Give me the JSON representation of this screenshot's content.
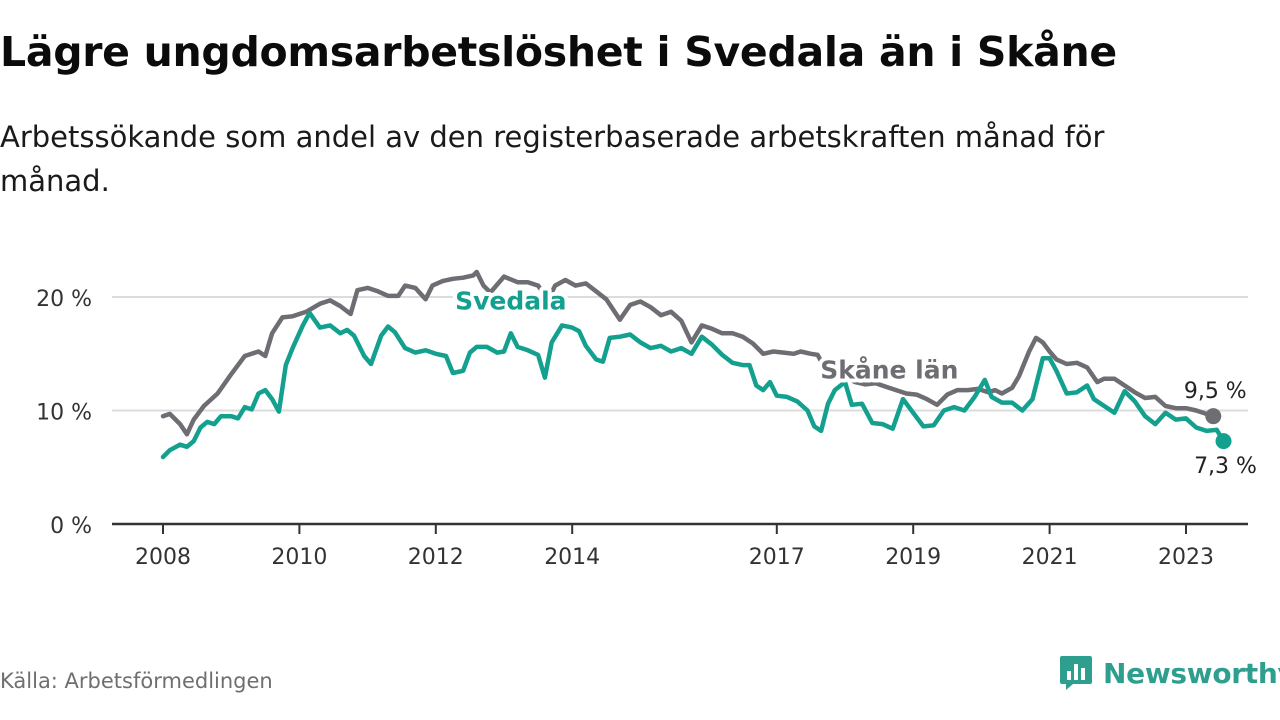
{
  "title": "Lägre ungdomsarbetslöshet i Svedala än i Skåne",
  "subtitle": "Arbetssökande som andel av den registerbaserade arbetskraften månad för månad.",
  "source": "Källa: Arbetsförmedlingen",
  "brand": "Newsworthy",
  "colors": {
    "svedala": "#13a08f",
    "skane": "#6e6d73",
    "grid": "#dcdcdc",
    "axis": "#333333",
    "brand": "#2e9f8e"
  },
  "chart_data": {
    "type": "line",
    "x_range": [
      2007.9,
      2023.8
    ],
    "ylim": [
      0,
      22
    ],
    "y_ticks": [
      {
        "value": 0,
        "label": "0 %"
      },
      {
        "value": 10,
        "label": "10 %"
      },
      {
        "value": 20,
        "label": "20 %"
      }
    ],
    "x_ticks": [
      {
        "value": 2008,
        "label": "2008"
      },
      {
        "value": 2010,
        "label": "2010"
      },
      {
        "value": 2012,
        "label": "2012"
      },
      {
        "value": 2014,
        "label": "2014"
      },
      {
        "value": 2017,
        "label": "2017"
      },
      {
        "value": 2019,
        "label": "2019"
      },
      {
        "value": 2021,
        "label": "2021"
      },
      {
        "value": 2023,
        "label": "2023"
      }
    ],
    "grid": true,
    "series": [
      {
        "name": "Skåne län",
        "key": "skane",
        "end_label": "9,5 %",
        "points": [
          [
            2008.0,
            9.5
          ],
          [
            2008.1,
            9.7
          ],
          [
            2008.25,
            8.8
          ],
          [
            2008.35,
            7.9
          ],
          [
            2008.45,
            9.2
          ],
          [
            2008.6,
            10.4
          ],
          [
            2008.8,
            11.5
          ],
          [
            2009.0,
            13.2
          ],
          [
            2009.2,
            14.8
          ],
          [
            2009.4,
            15.2
          ],
          [
            2009.5,
            14.8
          ],
          [
            2009.6,
            16.8
          ],
          [
            2009.75,
            18.2
          ],
          [
            2009.9,
            18.3
          ],
          [
            2010.1,
            18.7
          ],
          [
            2010.3,
            19.4
          ],
          [
            2010.45,
            19.7
          ],
          [
            2010.6,
            19.2
          ],
          [
            2010.75,
            18.5
          ],
          [
            2010.85,
            20.6
          ],
          [
            2011.0,
            20.8
          ],
          [
            2011.15,
            20.5
          ],
          [
            2011.3,
            20.1
          ],
          [
            2011.45,
            20.1
          ],
          [
            2011.55,
            21.0
          ],
          [
            2011.7,
            20.8
          ],
          [
            2011.85,
            19.8
          ],
          [
            2011.95,
            21.0
          ],
          [
            2012.1,
            21.4
          ],
          [
            2012.25,
            21.6
          ],
          [
            2012.4,
            21.7
          ],
          [
            2012.55,
            21.9
          ],
          [
            2012.6,
            22.2
          ],
          [
            2012.7,
            21.0
          ],
          [
            2012.8,
            20.4
          ],
          [
            2013.0,
            21.8
          ],
          [
            2013.2,
            21.3
          ],
          [
            2013.35,
            21.3
          ],
          [
            2013.5,
            21.0
          ],
          [
            2013.65,
            19.8
          ],
          [
            2013.75,
            21.0
          ],
          [
            2013.9,
            21.5
          ],
          [
            2014.05,
            21.0
          ],
          [
            2014.2,
            21.2
          ],
          [
            2014.35,
            20.5
          ],
          [
            2014.5,
            19.8
          ],
          [
            2014.7,
            18.0
          ],
          [
            2014.85,
            19.3
          ],
          [
            2015.0,
            19.6
          ],
          [
            2015.15,
            19.1
          ],
          [
            2015.3,
            18.4
          ],
          [
            2015.45,
            18.7
          ],
          [
            2015.6,
            17.9
          ],
          [
            2015.75,
            16.0
          ],
          [
            2015.9,
            17.5
          ],
          [
            2016.05,
            17.2
          ],
          [
            2016.2,
            16.8
          ],
          [
            2016.35,
            16.8
          ],
          [
            2016.5,
            16.5
          ],
          [
            2016.65,
            15.9
          ],
          [
            2016.8,
            15.0
          ],
          [
            2016.95,
            15.2
          ],
          [
            2017.1,
            15.1
          ],
          [
            2017.25,
            15.0
          ],
          [
            2017.35,
            15.2
          ],
          [
            2017.5,
            15.0
          ],
          [
            2017.6,
            14.9
          ],
          [
            2017.7,
            13.8
          ],
          [
            2017.85,
            13.5
          ],
          [
            2018.0,
            13.0
          ],
          [
            2018.15,
            12.5
          ],
          [
            2018.3,
            12.3
          ],
          [
            2018.45,
            12.4
          ],
          [
            2018.6,
            12.1
          ],
          [
            2018.75,
            11.8
          ],
          [
            2018.9,
            11.5
          ],
          [
            2019.05,
            11.4
          ],
          [
            2019.2,
            11.0
          ],
          [
            2019.35,
            10.5
          ],
          [
            2019.5,
            11.4
          ],
          [
            2019.65,
            11.8
          ],
          [
            2019.8,
            11.8
          ],
          [
            2019.95,
            11.9
          ],
          [
            2020.1,
            11.6
          ],
          [
            2020.2,
            11.8
          ],
          [
            2020.3,
            11.5
          ],
          [
            2020.45,
            12.0
          ],
          [
            2020.55,
            13.0
          ],
          [
            2020.7,
            15.2
          ],
          [
            2020.8,
            16.4
          ],
          [
            2020.9,
            16.0
          ],
          [
            2021.0,
            15.2
          ],
          [
            2021.1,
            14.5
          ],
          [
            2021.25,
            14.1
          ],
          [
            2021.4,
            14.2
          ],
          [
            2021.55,
            13.8
          ],
          [
            2021.7,
            12.5
          ],
          [
            2021.8,
            12.8
          ],
          [
            2021.95,
            12.8
          ],
          [
            2022.1,
            12.2
          ],
          [
            2022.25,
            11.6
          ],
          [
            2022.4,
            11.1
          ],
          [
            2022.55,
            11.2
          ],
          [
            2022.7,
            10.4
          ],
          [
            2022.85,
            10.2
          ],
          [
            2023.0,
            10.2
          ],
          [
            2023.15,
            10.0
          ],
          [
            2023.25,
            9.8
          ],
          [
            2023.4,
            9.5
          ]
        ]
      },
      {
        "name": "Svedala",
        "key": "svedala",
        "end_label": "7,3 %",
        "points": [
          [
            2008.0,
            5.9
          ],
          [
            2008.1,
            6.5
          ],
          [
            2008.25,
            7.0
          ],
          [
            2008.35,
            6.8
          ],
          [
            2008.45,
            7.3
          ],
          [
            2008.55,
            8.5
          ],
          [
            2008.65,
            9.0
          ],
          [
            2008.75,
            8.8
          ],
          [
            2008.85,
            9.5
          ],
          [
            2009.0,
            9.5
          ],
          [
            2009.1,
            9.3
          ],
          [
            2009.2,
            10.3
          ],
          [
            2009.3,
            10.1
          ],
          [
            2009.4,
            11.5
          ],
          [
            2009.5,
            11.8
          ],
          [
            2009.6,
            11.0
          ],
          [
            2009.7,
            9.9
          ],
          [
            2009.8,
            14.0
          ],
          [
            2009.9,
            15.5
          ],
          [
            2010.05,
            17.5
          ],
          [
            2010.15,
            18.6
          ],
          [
            2010.3,
            17.3
          ],
          [
            2010.45,
            17.5
          ],
          [
            2010.6,
            16.8
          ],
          [
            2010.7,
            17.1
          ],
          [
            2010.8,
            16.6
          ],
          [
            2010.95,
            14.8
          ],
          [
            2011.05,
            14.1
          ],
          [
            2011.2,
            16.6
          ],
          [
            2011.3,
            17.4
          ],
          [
            2011.4,
            16.9
          ],
          [
            2011.55,
            15.5
          ],
          [
            2011.7,
            15.1
          ],
          [
            2011.85,
            15.3
          ],
          [
            2012.0,
            15.0
          ],
          [
            2012.15,
            14.8
          ],
          [
            2012.25,
            13.3
          ],
          [
            2012.4,
            13.5
          ],
          [
            2012.5,
            15.1
          ],
          [
            2012.6,
            15.6
          ],
          [
            2012.75,
            15.6
          ],
          [
            2012.9,
            15.1
          ],
          [
            2013.0,
            15.2
          ],
          [
            2013.1,
            16.8
          ],
          [
            2013.2,
            15.6
          ],
          [
            2013.35,
            15.3
          ],
          [
            2013.5,
            14.9
          ],
          [
            2013.6,
            12.9
          ],
          [
            2013.7,
            16.0
          ],
          [
            2013.85,
            17.5
          ],
          [
            2014.0,
            17.3
          ],
          [
            2014.1,
            17.0
          ],
          [
            2014.2,
            15.7
          ],
          [
            2014.35,
            14.5
          ],
          [
            2014.45,
            14.3
          ],
          [
            2014.55,
            16.4
          ],
          [
            2014.7,
            16.5
          ],
          [
            2014.85,
            16.7
          ],
          [
            2015.0,
            16.0
          ],
          [
            2015.15,
            15.5
          ],
          [
            2015.3,
            15.7
          ],
          [
            2015.45,
            15.2
          ],
          [
            2015.6,
            15.5
          ],
          [
            2015.75,
            15.0
          ],
          [
            2015.9,
            16.5
          ],
          [
            2016.05,
            15.8
          ],
          [
            2016.2,
            14.9
          ],
          [
            2016.35,
            14.2
          ],
          [
            2016.5,
            14.0
          ],
          [
            2016.6,
            14.0
          ],
          [
            2016.7,
            12.2
          ],
          [
            2016.8,
            11.8
          ],
          [
            2016.9,
            12.5
          ],
          [
            2017.0,
            11.3
          ],
          [
            2017.15,
            11.2
          ],
          [
            2017.3,
            10.8
          ],
          [
            2017.45,
            10.0
          ],
          [
            2017.55,
            8.6
          ],
          [
            2017.65,
            8.2
          ],
          [
            2017.75,
            10.6
          ],
          [
            2017.85,
            11.8
          ],
          [
            2018.0,
            12.5
          ],
          [
            2018.1,
            10.5
          ],
          [
            2018.25,
            10.6
          ],
          [
            2018.4,
            8.9
          ],
          [
            2018.55,
            8.8
          ],
          [
            2018.7,
            8.4
          ],
          [
            2018.85,
            11.0
          ],
          [
            2019.0,
            9.8
          ],
          [
            2019.15,
            8.6
          ],
          [
            2019.3,
            8.7
          ],
          [
            2019.45,
            10.0
          ],
          [
            2019.6,
            10.3
          ],
          [
            2019.75,
            10.0
          ],
          [
            2019.9,
            11.2
          ],
          [
            2020.05,
            12.7
          ],
          [
            2020.15,
            11.2
          ],
          [
            2020.3,
            10.7
          ],
          [
            2020.45,
            10.7
          ],
          [
            2020.6,
            10.0
          ],
          [
            2020.75,
            11.0
          ],
          [
            2020.9,
            14.6
          ],
          [
            2021.0,
            14.6
          ],
          [
            2021.1,
            13.5
          ],
          [
            2021.25,
            11.5
          ],
          [
            2021.4,
            11.6
          ],
          [
            2021.55,
            12.2
          ],
          [
            2021.65,
            11.0
          ],
          [
            2021.8,
            10.4
          ],
          [
            2021.95,
            9.8
          ],
          [
            2022.1,
            11.7
          ],
          [
            2022.25,
            10.8
          ],
          [
            2022.4,
            9.5
          ],
          [
            2022.55,
            8.8
          ],
          [
            2022.7,
            9.8
          ],
          [
            2022.85,
            9.2
          ],
          [
            2023.0,
            9.3
          ],
          [
            2023.15,
            8.5
          ],
          [
            2023.3,
            8.2
          ],
          [
            2023.45,
            8.3
          ],
          [
            2023.55,
            7.3
          ]
        ]
      }
    ],
    "series_labels": [
      {
        "text": "Svedala",
        "key": "svedala",
        "at": [
          2013.1,
          18.9
        ]
      },
      {
        "text": "Skåne län",
        "key": "skane",
        "at": [
          2018.65,
          12.8
        ]
      }
    ]
  }
}
